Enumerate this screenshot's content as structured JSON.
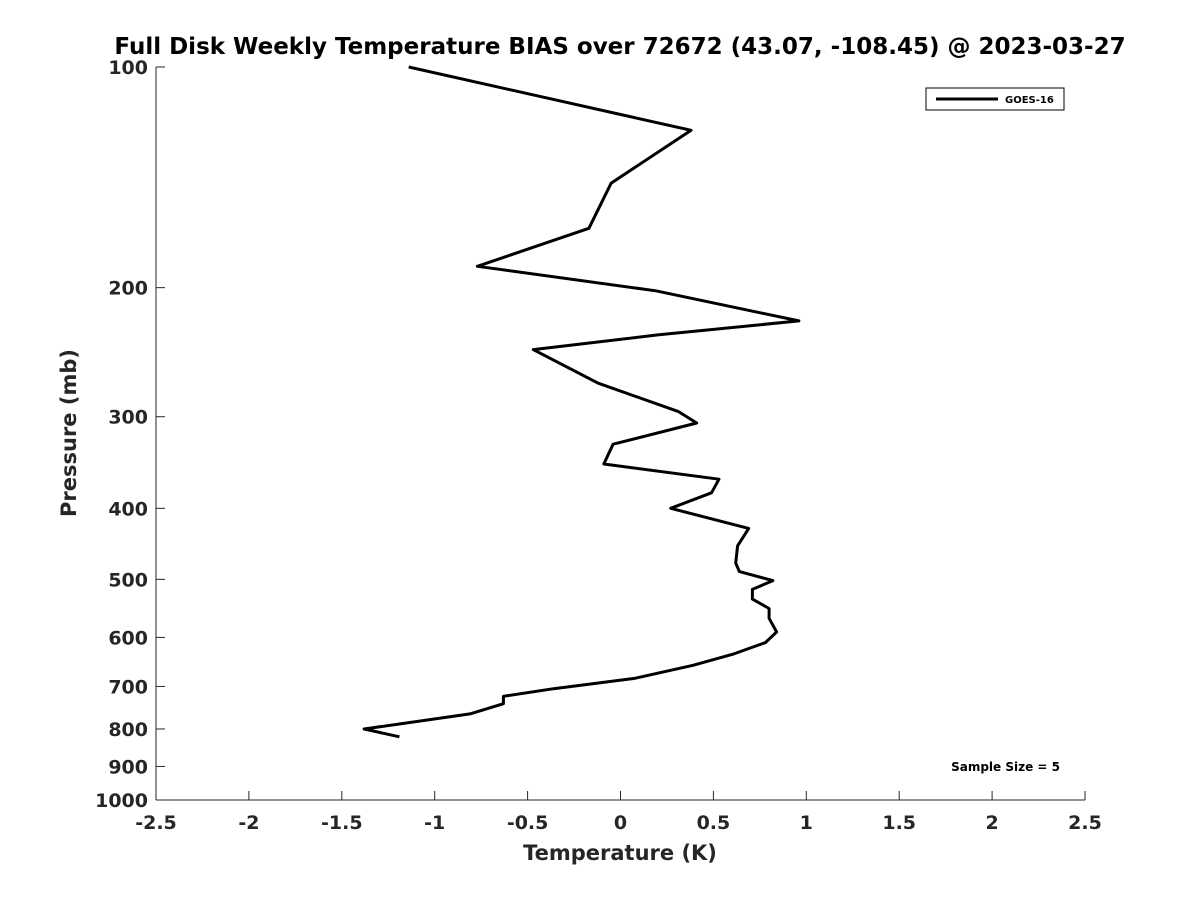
{
  "chart_data": {
    "type": "line",
    "title": "Full Disk Weekly Temperature BIAS over 72672 (43.07, -108.45) @ 2023-03-27",
    "xlabel": "Temperature (K)",
    "ylabel": "Pressure (mb)",
    "xlim": [
      -2.5,
      2.5
    ],
    "ylim": [
      100,
      1000
    ],
    "y_scale": "log",
    "y_reversed": false,
    "grid": false,
    "legend_position": "top-right",
    "x_ticks": [
      -2.5,
      -2,
      -1.5,
      -1,
      -0.5,
      0,
      0.5,
      1,
      1.5,
      2,
      2.5
    ],
    "x_tick_labels": [
      "-2.5",
      "-2",
      "-1.5",
      "-1",
      "-0.5",
      "0",
      "0.5",
      "1",
      "1.5",
      "2",
      "2.5"
    ],
    "y_ticks": [
      100,
      200,
      300,
      400,
      500,
      600,
      700,
      800,
      900,
      1000
    ],
    "y_tick_labels": [
      "100",
      "200",
      "300",
      "400",
      "500",
      "600",
      "700",
      "800",
      "900",
      "1000"
    ],
    "series": [
      {
        "name": "GOES-16",
        "color": "#000000",
        "x": [
          -1.14,
          0.38,
          -0.05,
          -0.17,
          -0.77,
          0.19,
          0.96,
          0.2,
          -0.47,
          -0.12,
          0.31,
          0.41,
          -0.04,
          -0.09,
          0.53,
          0.49,
          0.27,
          0.69,
          0.63,
          0.62,
          0.64,
          0.82,
          0.71,
          0.71,
          0.8,
          0.8,
          0.84,
          0.78,
          0.61,
          0.39,
          0.08,
          -0.36,
          -0.63,
          -0.63,
          -0.81,
          -1.38,
          -1.19
        ],
        "y": [
          100,
          122,
          144,
          166,
          187,
          202,
          222,
          232,
          243,
          270,
          295,
          306,
          327,
          348,
          365,
          381,
          400,
          426,
          450,
          475,
          488,
          502,
          516,
          532,
          548,
          565,
          590,
          610,
          632,
          655,
          682,
          705,
          722,
          739,
          763,
          800,
          820
        ]
      }
    ],
    "annotations": [
      "Sample Size = 5"
    ]
  }
}
